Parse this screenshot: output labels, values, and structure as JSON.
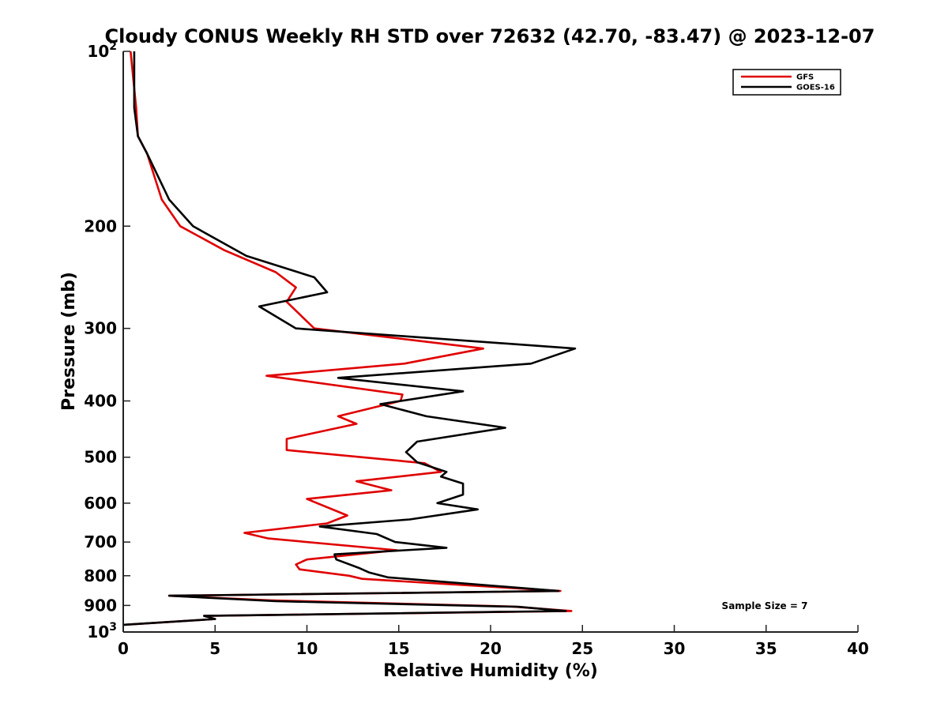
{
  "chart_data": {
    "type": "line",
    "title": "Cloudy CONUS Weekly RH STD over 72632 (42.70, -83.47) @ 2023-12-07",
    "xlabel": "Relative Humidity (%)",
    "ylabel": "Pressure (mb)",
    "xlim": [
      0,
      40
    ],
    "ylim": [
      100,
      1000
    ],
    "y_scale": "log",
    "y_reversed": true,
    "grid": false,
    "legend_placement": "top-right",
    "x_ticks": [
      "0",
      "5",
      "10",
      "15",
      "20",
      "25",
      "30",
      "35",
      "40"
    ],
    "y_ticks": [
      {
        "value": 100,
        "base": "10",
        "exp": "2"
      },
      {
        "value": 200,
        "label": "200"
      },
      {
        "value": 300,
        "label": "300"
      },
      {
        "value": 400,
        "label": "400"
      },
      {
        "value": 500,
        "label": "500"
      },
      {
        "value": 600,
        "label": "600"
      },
      {
        "value": 700,
        "label": "700"
      },
      {
        "value": 800,
        "label": "800"
      },
      {
        "value": 900,
        "label": "900"
      },
      {
        "value": 1000,
        "base": "10",
        "exp": "3"
      }
    ],
    "annotation": "Sample Size = 7",
    "series": [
      {
        "name": "GFS",
        "color": "#e00000",
        "points": [
          [
            0.4,
            100
          ],
          [
            0.7,
            125
          ],
          [
            0.8,
            140
          ],
          [
            1.3,
            150
          ],
          [
            2.1,
            180
          ],
          [
            3.1,
            200
          ],
          [
            5.5,
            220
          ],
          [
            8.3,
            240
          ],
          [
            9.4,
            255
          ],
          [
            8.9,
            270
          ],
          [
            10.4,
            300
          ],
          [
            19.6,
            325
          ],
          [
            15.3,
            345
          ],
          [
            7.8,
            362
          ],
          [
            15.2,
            390
          ],
          [
            15.1,
            400
          ],
          [
            11.7,
            425
          ],
          [
            12.7,
            438
          ],
          [
            8.9,
            465
          ],
          [
            8.9,
            486
          ],
          [
            16.4,
            512
          ],
          [
            17.3,
            530
          ],
          [
            12.7,
            550
          ],
          [
            14.6,
            570
          ],
          [
            10.0,
            590
          ],
          [
            12.2,
            630
          ],
          [
            11.1,
            650
          ],
          [
            6.6,
            675
          ],
          [
            7.9,
            690
          ],
          [
            14.9,
            723
          ],
          [
            10.0,
            750
          ],
          [
            9.4,
            765
          ],
          [
            9.6,
            780
          ],
          [
            12.3,
            800
          ],
          [
            13.0,
            810
          ],
          [
            23.8,
            850
          ],
          [
            2.5,
            866
          ],
          [
            8.0,
            882
          ],
          [
            21.2,
            904
          ],
          [
            24.4,
            920
          ],
          [
            4.4,
            938
          ],
          [
            5.0,
            950
          ],
          [
            0.0,
            972
          ]
        ]
      },
      {
        "name": "GOES-16",
        "color": "#000000",
        "points": [
          [
            0.6,
            100
          ],
          [
            0.6,
            125
          ],
          [
            0.8,
            140
          ],
          [
            1.3,
            150
          ],
          [
            2.5,
            180
          ],
          [
            3.8,
            200
          ],
          [
            6.7,
            225
          ],
          [
            10.4,
            245
          ],
          [
            11.1,
            260
          ],
          [
            7.4,
            275
          ],
          [
            9.4,
            300
          ],
          [
            24.6,
            325
          ],
          [
            22.2,
            345
          ],
          [
            11.7,
            365
          ],
          [
            18.5,
            385
          ],
          [
            14.0,
            405
          ],
          [
            16.5,
            425
          ],
          [
            20.8,
            445
          ],
          [
            16.0,
            470
          ],
          [
            15.4,
            490
          ],
          [
            16.0,
            510
          ],
          [
            17.6,
            530
          ],
          [
            17.3,
            540
          ],
          [
            18.5,
            555
          ],
          [
            18.5,
            580
          ],
          [
            17.1,
            600
          ],
          [
            19.3,
            615
          ],
          [
            15.6,
            640
          ],
          [
            10.7,
            658
          ],
          [
            13.8,
            678
          ],
          [
            14.8,
            700
          ],
          [
            17.6,
            716
          ],
          [
            11.5,
            735
          ],
          [
            11.6,
            750
          ],
          [
            12.8,
            775
          ],
          [
            13.4,
            790
          ],
          [
            14.4,
            805
          ],
          [
            23.7,
            850
          ],
          [
            2.5,
            866
          ],
          [
            8.3,
            885
          ],
          [
            21.5,
            905
          ],
          [
            24.1,
            920
          ],
          [
            4.4,
            938
          ],
          [
            5.0,
            950
          ],
          [
            0.0,
            972
          ]
        ]
      }
    ]
  }
}
